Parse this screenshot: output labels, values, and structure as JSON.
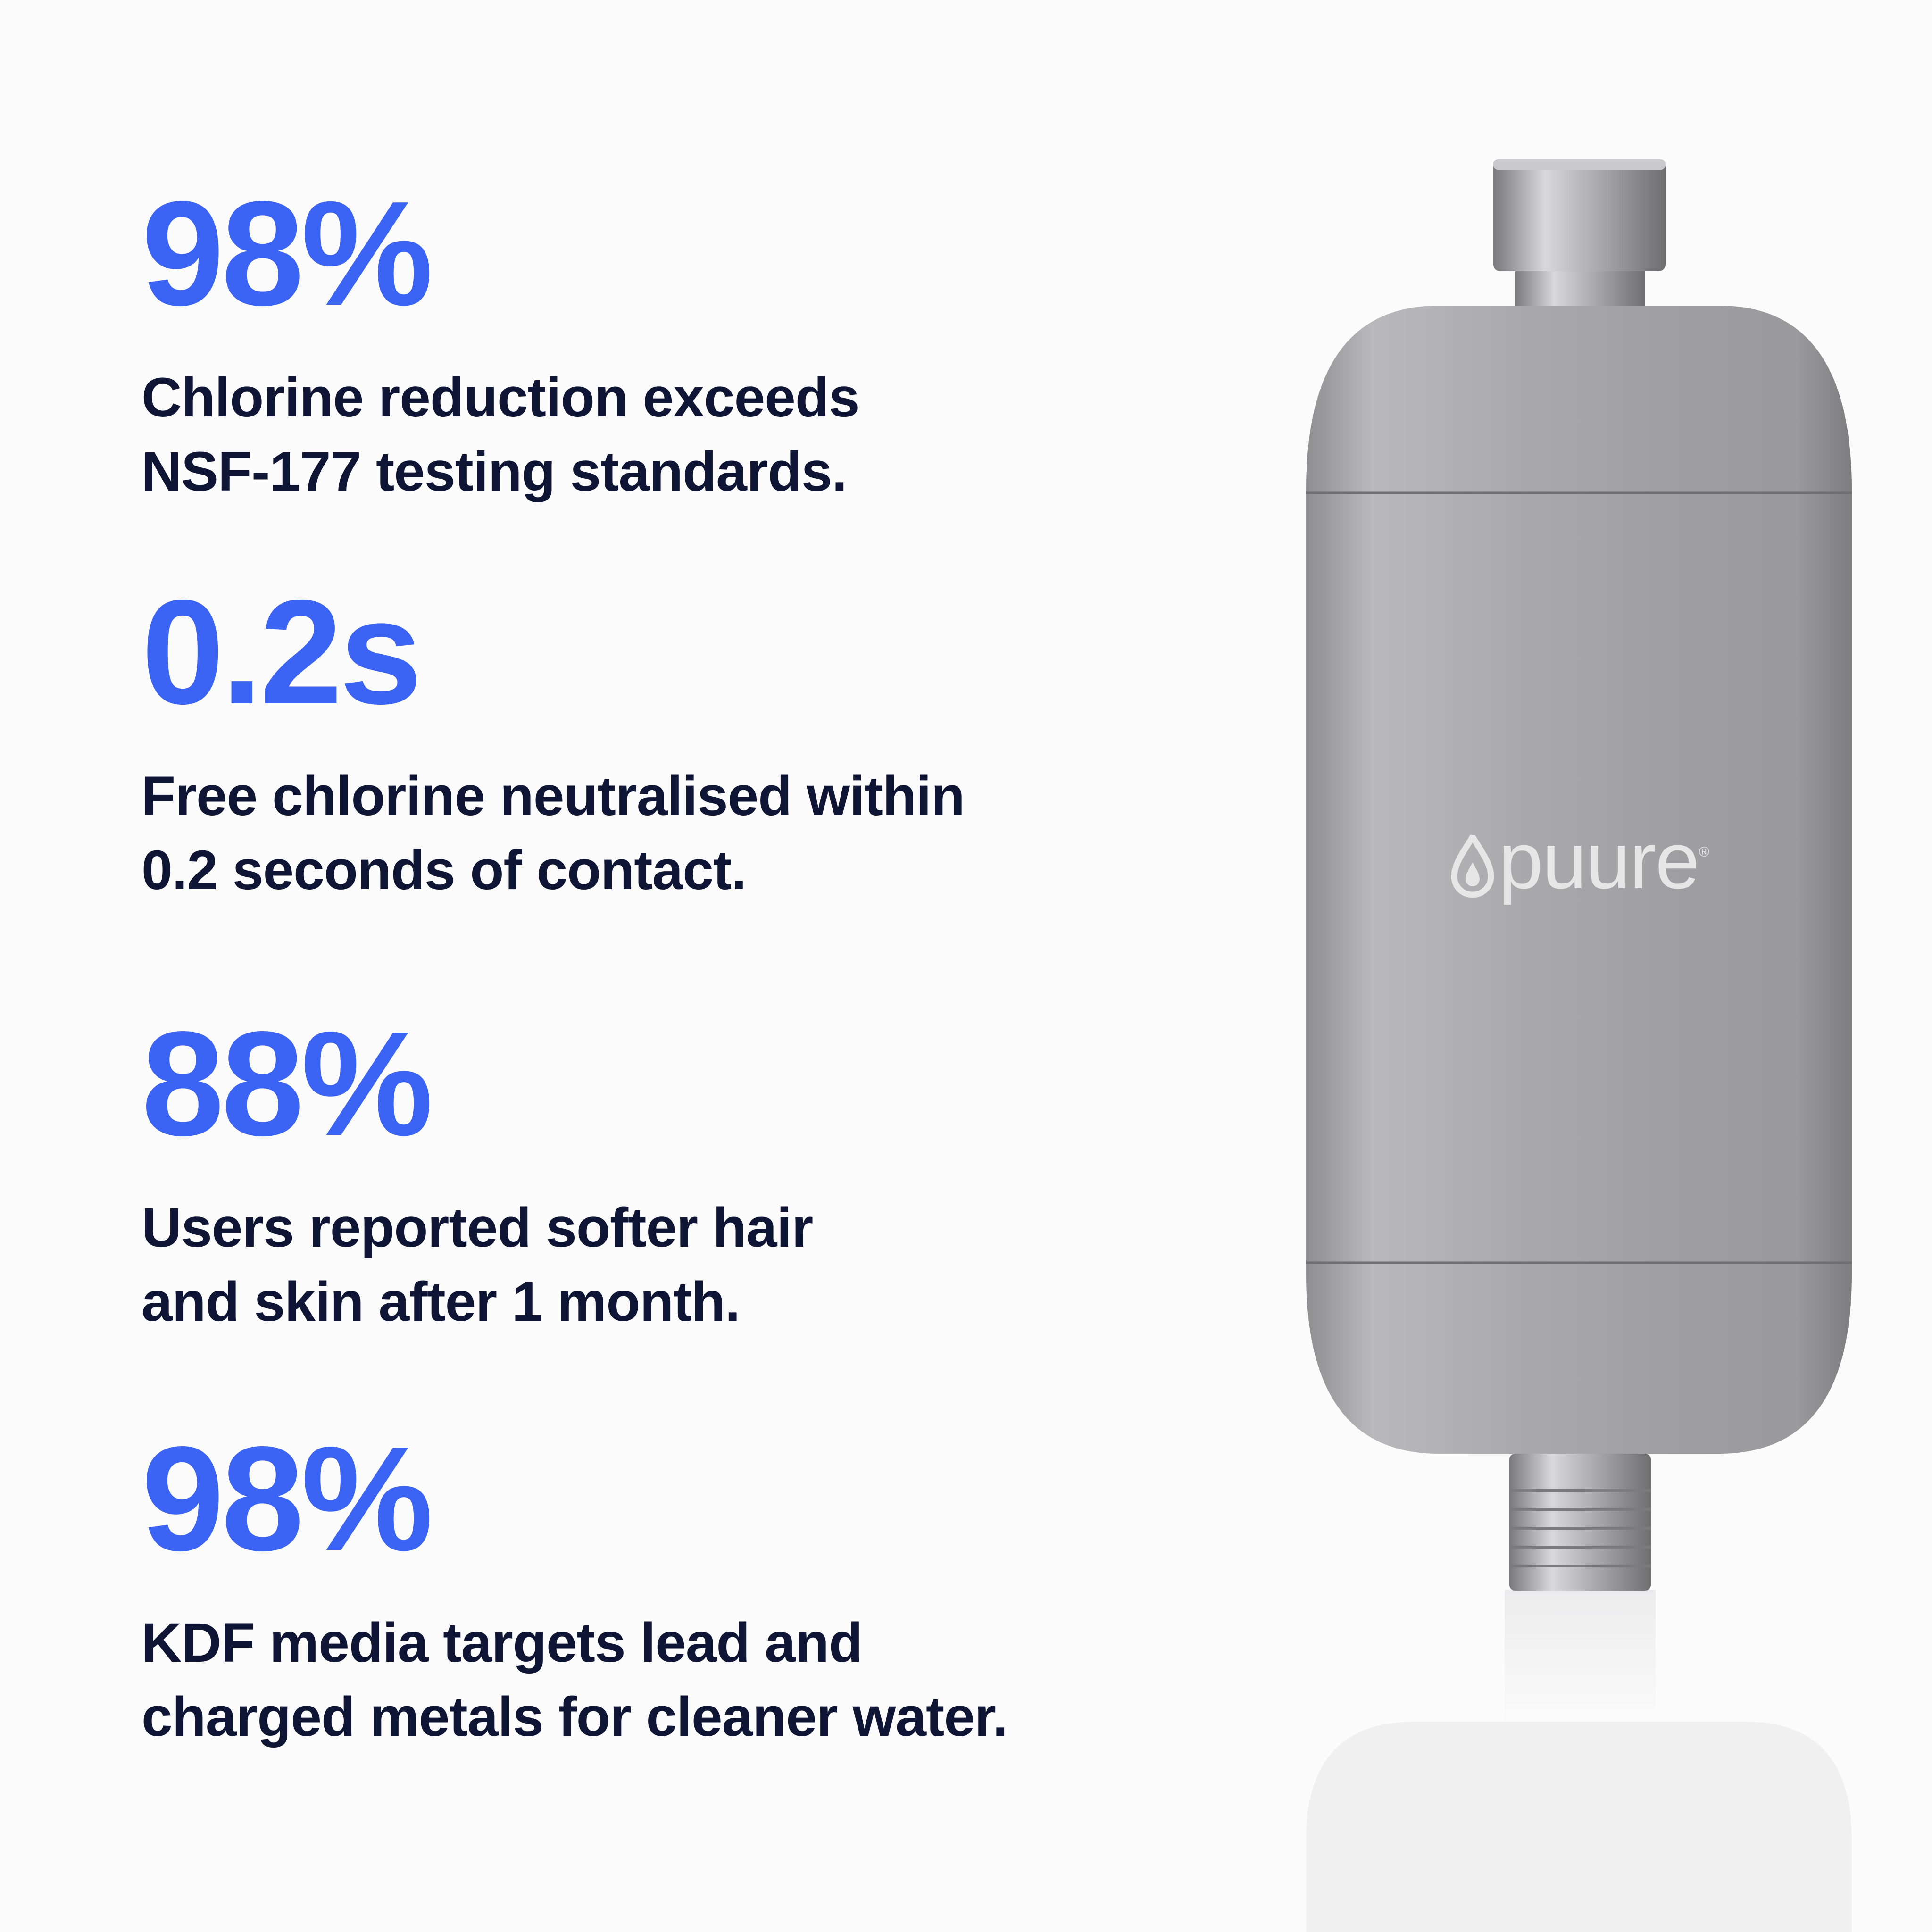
{
  "colors": {
    "accent": "#3b63f4",
    "text": "#0f1535",
    "background": "#fbfbfb"
  },
  "stats": [
    {
      "value": "98%",
      "line1": "Chlorine reduction exceeds",
      "line2": "NSF-177 testing standards."
    },
    {
      "value": "0.2s",
      "line1": "Free chlorine neutralised within",
      "line2": "0.2 seconds of contact."
    },
    {
      "value": "88%",
      "line1": "Users reported softer hair",
      "line2": "and skin after 1 month."
    },
    {
      "value": "98%",
      "line1": "KDF media targets lead and",
      "line2": "charged metals for cleaner water."
    }
  ],
  "product": {
    "brand": "puure",
    "registered": "®",
    "icon": "water-drop-icon"
  }
}
